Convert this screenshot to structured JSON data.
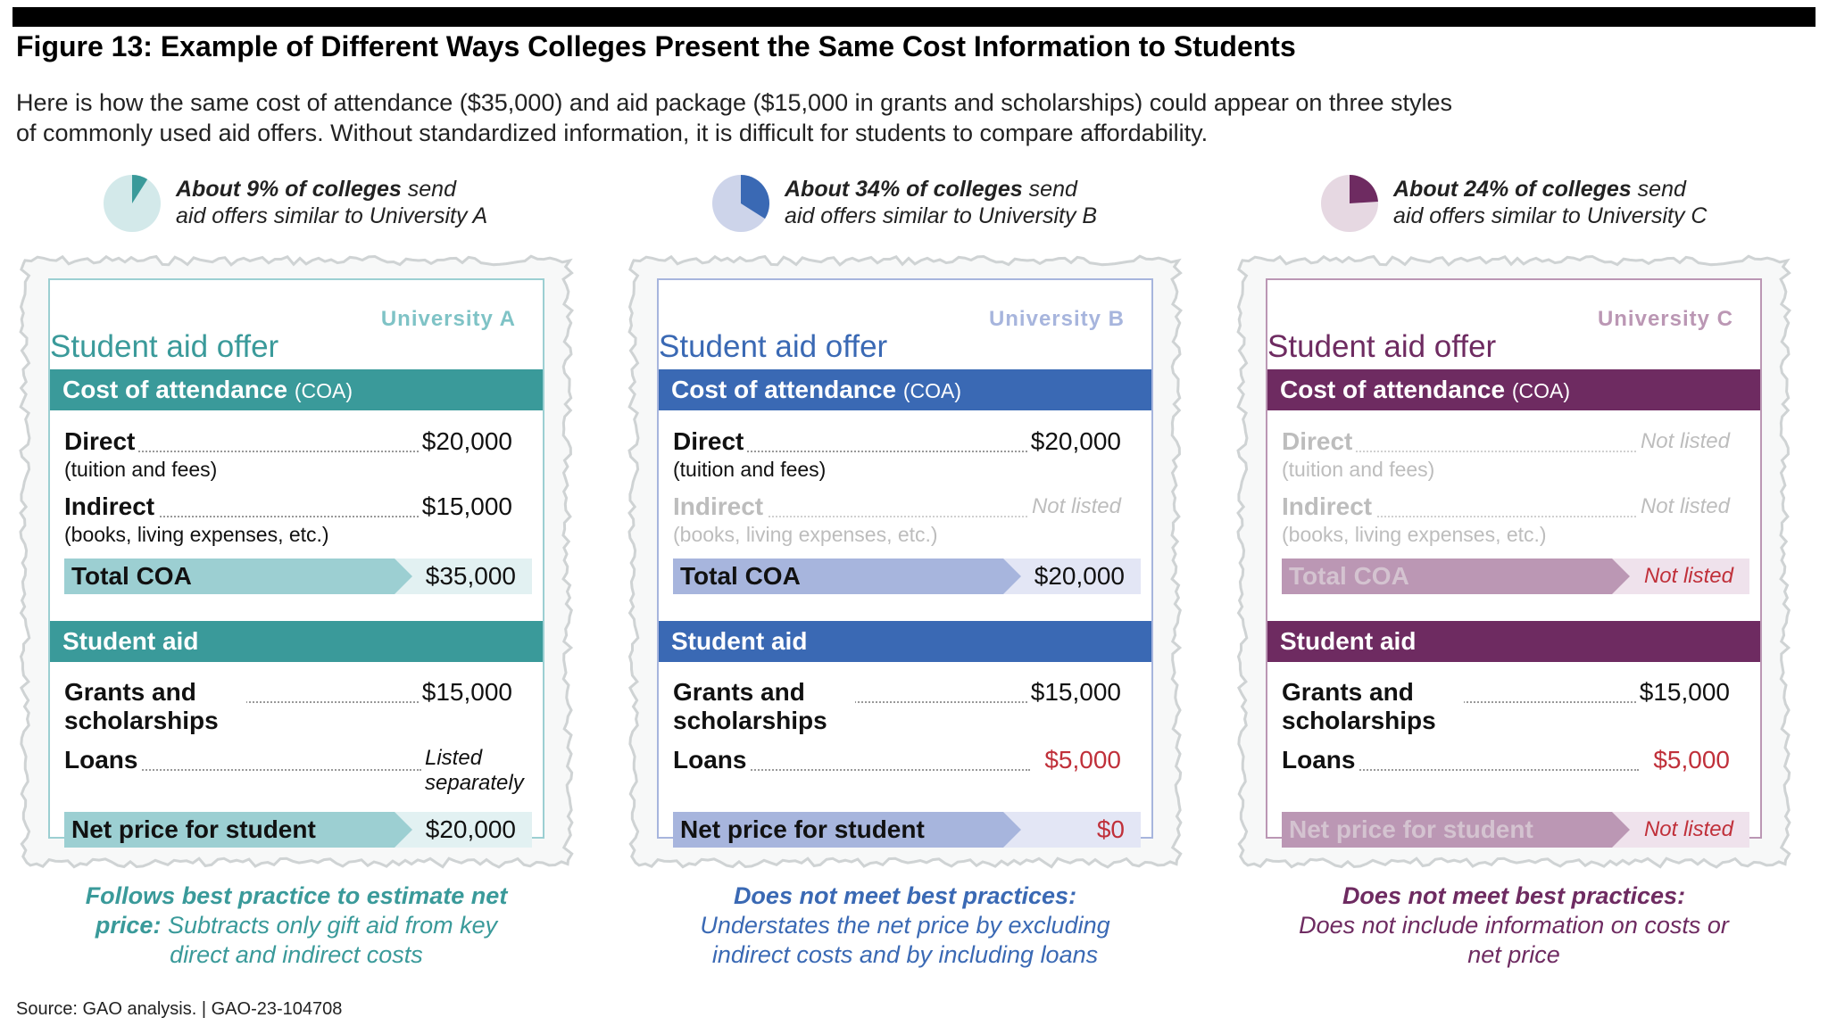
{
  "figure": {
    "title": "Figure 13: Example of Different Ways Colleges Present the Same Cost Information to Students",
    "intro_line1": "Here is how the same cost of attendance ($35,000) and aid package ($15,000 in grants and scholarships) could appear on three styles",
    "intro_line2": "of commonly used aid offers. Without standardized information, it is difficult for students to compare affordability.",
    "source": "Source: GAO analysis.  |  GAO-23-104708"
  },
  "labels": {
    "offer_title": "Student aid offer",
    "coa_header": "Cost of attendance",
    "coa_abbrev": "(COA)",
    "direct": "Direct",
    "direct_sub": "(tuition and fees)",
    "indirect": "Indirect",
    "indirect_sub": "(books, living expenses, etc.)",
    "total_coa": "Total COA",
    "aid_header": "Student aid",
    "grants": "Grants and scholarships",
    "loans": "Loans",
    "net_price": "Net price for student"
  },
  "panels": [
    {
      "share_percent": 9,
      "share_bold": "About 9% of colleges",
      "share_rest1": " send",
      "share_line2": "aid offers similar to University A",
      "university": "University A",
      "accent_color": "#3a9a9a",
      "band_color": "#9ccfd2",
      "band_bg": "#e2f1f2",
      "pie_bg": "#d3e9ea",
      "direct_value": "$20,000",
      "indirect_value": "$15,000",
      "total_coa_value": "$35,000",
      "grants_value": "$15,000",
      "loans_value": "Listed separately",
      "net_price_value": "$20,000",
      "note_bold": "Follows best practice to estimate net price:",
      "note_rest": " Subtracts only gift aid from key direct and indirect costs"
    },
    {
      "share_percent": 34,
      "share_bold": "About 34% of colleges",
      "share_rest1": " send",
      "share_line2": "aid offers similar to University B",
      "university": "University B",
      "accent_color": "#3a69b4",
      "band_color": "#a7b5dd",
      "band_bg": "#e3e6f5",
      "pie_bg": "#cdd4ea",
      "direct_value": "$20,000",
      "indirect_value": "Not listed",
      "total_coa_value": "$20,000",
      "grants_value": "$15,000",
      "loans_value": "$5,000",
      "net_price_value": "$0",
      "note_bold": "Does not meet best practices:",
      "note_rest": "Understates the net price by excluding indirect costs and by including loans"
    },
    {
      "share_percent": 24,
      "share_bold": "About 24% of colleges",
      "share_rest1": " send",
      "share_line2": "aid offers similar to University C",
      "university": "University C",
      "accent_color": "#6e2b61",
      "band_color": "#bb97b4",
      "band_bg": "#efe2ec",
      "pie_bg": "#e6d8e2",
      "direct_value": "Not listed",
      "indirect_value": "Not listed",
      "total_coa_value": "Not listed",
      "grants_value": "$15,000",
      "loans_value": "$5,000",
      "net_price_value": "Not listed",
      "note_bold": "Does not meet best practices:",
      "note_rest": "Does not include information on costs or net price"
    }
  ]
}
